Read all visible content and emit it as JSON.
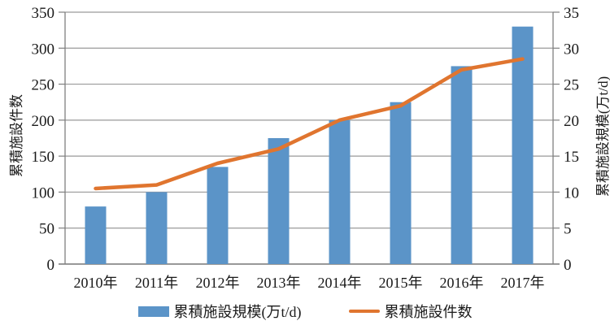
{
  "chart_data": {
    "type": "bar",
    "subtype": "combo-bar-line-dual-axis",
    "categories": [
      "2010年",
      "2011年",
      "2012年",
      "2013年",
      "2014年",
      "2015年",
      "2016年",
      "2017年"
    ],
    "series": [
      {
        "name": "累積施設規模(万t/d)",
        "type": "bar",
        "axis": "right",
        "color": "#5B94C8",
        "values": [
          8,
          10,
          13.5,
          17.5,
          20,
          22.5,
          27.5,
          33
        ]
      },
      {
        "name": "累積施設件数",
        "type": "line",
        "axis": "left",
        "color": "#E0752F",
        "values": [
          105,
          110,
          140,
          160,
          200,
          220,
          270,
          285
        ]
      }
    ],
    "left_axis": {
      "title": "累積施設件数",
      "min": 0,
      "max": 350,
      "ticks": [
        0,
        50,
        100,
        150,
        200,
        250,
        300,
        350
      ]
    },
    "right_axis": {
      "title": "累積施設規模(万t/d)",
      "min": 0,
      "max": 35,
      "ticks": [
        0,
        5,
        10,
        15,
        20,
        25,
        30,
        35
      ]
    },
    "grid": "horizontal",
    "legend_position": "bottom",
    "colors": {
      "gridline": "#9A9A9A",
      "axis_line": "#7F7F7F",
      "text": "#1a1a1a",
      "background": "#ffffff"
    }
  }
}
